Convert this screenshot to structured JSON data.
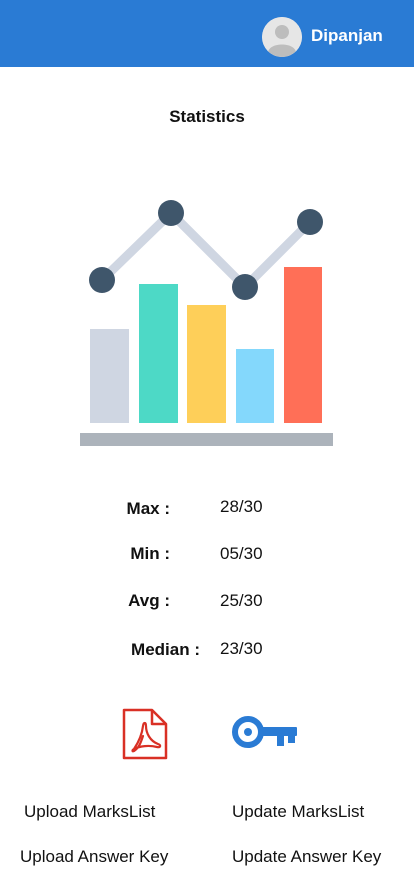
{
  "header": {
    "username": "Dipanjan",
    "color": "#2a7bd4"
  },
  "page": {
    "title": "Statistics"
  },
  "illustration": {
    "icon": "bar-line-chart-illustration",
    "bar_colors": [
      "#cfd6e2",
      "#4dd9c6",
      "#fecf59",
      "#84d8fc",
      "#ff6f57"
    ],
    "marker_color": "#3f566b",
    "line_color": "#cfd6e2",
    "base_color": "#acb3bb"
  },
  "stats": [
    {
      "label": "Max :",
      "value": "28/30"
    },
    {
      "label": "Min :",
      "value": "05/30"
    },
    {
      "label": "Avg :",
      "value": "25/30"
    },
    {
      "label": "Median :",
      "value": "23/30"
    }
  ],
  "icons": {
    "pdf": {
      "name": "pdf-icon",
      "color": "#d93025"
    },
    "key": {
      "name": "key-icon",
      "color": "#2a7bd4"
    }
  },
  "actions": {
    "upload_markslist": "Upload MarksList",
    "update_markslist": "Update MarksList",
    "upload_answer_key": "Upload Answer Key",
    "update_answer_key": "Update Answer Key"
  }
}
